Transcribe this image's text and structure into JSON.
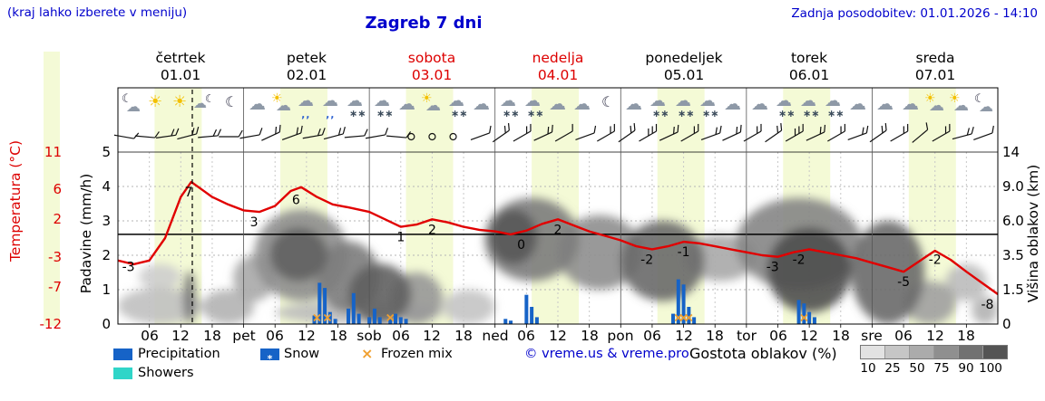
{
  "header": {
    "hint": "(kraj lahko izberete v meniju)",
    "title": "Zagreb 7 dni",
    "updated": "Zadnja posodobitev: 01.01.2026 - 14:10"
  },
  "colors": {
    "accent_blue": "#0000cc",
    "temp_red": "#dd0000",
    "temp_line": "#e10000",
    "precip_blue": "#1663c7",
    "showers_cyan": "#30d5c8",
    "frozen_orange": "#f0a030",
    "day_band": "#f4fad6"
  },
  "days": [
    {
      "name": "četrtek",
      "date": "01.01",
      "highlight": false,
      "icons": [
        "moon-cloud",
        "sun",
        "sun",
        "cloud-moon",
        "moon"
      ]
    },
    {
      "name": "petek",
      "date": "02.01",
      "highlight": false,
      "icons": [
        "cloud",
        "sun-cloud",
        "rain-cloud",
        "rain-cloud",
        "snow-cloud"
      ]
    },
    {
      "name": "sobota",
      "date": "03.01",
      "highlight": true,
      "icons": [
        "snow-cloud",
        "cloud",
        "sun-cloud",
        "snow-cloud",
        "cloud"
      ]
    },
    {
      "name": "nedelja",
      "date": "04.01",
      "highlight": true,
      "icons": [
        "snow-cloud",
        "snow-cloud",
        "cloud",
        "cloud",
        "moon"
      ]
    },
    {
      "name": "ponedeljek",
      "date": "05.01",
      "highlight": false,
      "icons": [
        "cloud",
        "snow-cloud",
        "snow-cloud",
        "snow-cloud",
        "cloud"
      ]
    },
    {
      "name": "torek",
      "date": "06.01",
      "highlight": false,
      "icons": [
        "cloud",
        "snow-cloud",
        "snow-cloud",
        "snow-cloud",
        "cloud"
      ]
    },
    {
      "name": "sreda",
      "date": "07.01",
      "highlight": false,
      "icons": [
        "cloud",
        "cloud",
        "sun-cloud",
        "sun-cloud",
        "moon-cloud"
      ]
    }
  ],
  "axes": {
    "temp": {
      "label": "Temperatura (°C)",
      "ticks": [
        11,
        6,
        2,
        -3,
        -7,
        -12
      ]
    },
    "precip": {
      "label": "Padavine (mm/h)",
      "ticks": [
        5,
        4,
        3,
        2,
        1,
        0
      ]
    },
    "cloud": {
      "label": "Višina oblakov (km)",
      "ticks": [
        "14",
        "9.0",
        "6.0",
        "3.5",
        "1.5",
        "0"
      ]
    }
  },
  "x_labels": [
    {
      "h": 6,
      "t": "06"
    },
    {
      "h": 12,
      "t": "12"
    },
    {
      "h": 18,
      "t": "18"
    },
    {
      "h": 24,
      "t": "pet"
    },
    {
      "h": 30,
      "t": "06"
    },
    {
      "h": 36,
      "t": "12"
    },
    {
      "h": 42,
      "t": "18"
    },
    {
      "h": 48,
      "t": "sob"
    },
    {
      "h": 54,
      "t": "06"
    },
    {
      "h": 60,
      "t": "12"
    },
    {
      "h": 66,
      "t": "18"
    },
    {
      "h": 72,
      "t": "ned"
    },
    {
      "h": 78,
      "t": "06"
    },
    {
      "h": 84,
      "t": "12"
    },
    {
      "h": 90,
      "t": "18"
    },
    {
      "h": 96,
      "t": "pon"
    },
    {
      "h": 102,
      "t": "06"
    },
    {
      "h": 108,
      "t": "12"
    },
    {
      "h": 114,
      "t": "18"
    },
    {
      "h": 120,
      "t": "tor"
    },
    {
      "h": 126,
      "t": "06"
    },
    {
      "h": 132,
      "t": "12"
    },
    {
      "h": 138,
      "t": "18"
    },
    {
      "h": 144,
      "t": "sre"
    },
    {
      "h": 150,
      "t": "06"
    },
    {
      "h": 156,
      "t": "12"
    },
    {
      "h": 162,
      "t": "18"
    }
  ],
  "legend": {
    "precipitation": "Precipitation",
    "snow": "Snow",
    "frozen": "Frozen mix",
    "showers": "Showers",
    "copyright": "© vreme.us & vreme.pro",
    "cloud_density_label": "Gostota oblakov (%)",
    "density_ticks": [
      10,
      25,
      50,
      75,
      90,
      100
    ]
  },
  "chart_data": {
    "type": "line",
    "title": "Zagreb 7 dni",
    "x_unit": "hours from 01.01 00:00",
    "x_range_hours": [
      0,
      168
    ],
    "now_hour": 14.2,
    "daylight_hours": [
      7,
      16
    ],
    "temp_axis_range": [
      -12,
      11
    ],
    "precip_axis_range": [
      0,
      5
    ],
    "cloud_height_ticks_km": [
      0,
      1.5,
      3.5,
      6,
      9,
      14
    ],
    "temperature_c": [
      [
        0,
        -3.5
      ],
      [
        3,
        -4
      ],
      [
        6,
        -3.5
      ],
      [
        9,
        -0.5
      ],
      [
        12,
        5
      ],
      [
        14,
        7
      ],
      [
        16,
        6
      ],
      [
        18,
        5
      ],
      [
        21,
        4
      ],
      [
        24,
        3.2
      ],
      [
        27,
        3
      ],
      [
        30,
        3.8
      ],
      [
        33,
        5.8
      ],
      [
        35,
        6.3
      ],
      [
        38,
        5
      ],
      [
        41,
        4
      ],
      [
        44,
        3.6
      ],
      [
        48,
        3
      ],
      [
        51,
        2
      ],
      [
        54,
        1
      ],
      [
        57,
        1.3
      ],
      [
        60,
        2
      ],
      [
        63,
        1.6
      ],
      [
        66,
        1
      ],
      [
        69,
        0.6
      ],
      [
        72,
        0.4
      ],
      [
        75,
        0
      ],
      [
        78,
        0.5
      ],
      [
        81,
        1.4
      ],
      [
        84,
        2
      ],
      [
        87,
        1.2
      ],
      [
        90,
        0.4
      ],
      [
        93,
        -0.2
      ],
      [
        96,
        -0.8
      ],
      [
        99,
        -1.6
      ],
      [
        102,
        -2
      ],
      [
        105,
        -1.6
      ],
      [
        108,
        -1
      ],
      [
        111,
        -1.2
      ],
      [
        114,
        -1.6
      ],
      [
        117,
        -2
      ],
      [
        120,
        -2.4
      ],
      [
        123,
        -2.8
      ],
      [
        126,
        -3
      ],
      [
        129,
        -2.4
      ],
      [
        132,
        -2
      ],
      [
        135,
        -2.4
      ],
      [
        138,
        -2.8
      ],
      [
        141,
        -3.2
      ],
      [
        144,
        -3.8
      ],
      [
        147,
        -4.4
      ],
      [
        150,
        -5
      ],
      [
        153,
        -3.6
      ],
      [
        156,
        -2.2
      ],
      [
        159,
        -3.4
      ],
      [
        162,
        -5
      ],
      [
        165,
        -6.5
      ],
      [
        168,
        -8
      ]
    ],
    "temp_labels": [
      {
        "h": 2,
        "v": -3
      },
      {
        "h": 13.5,
        "v": 7
      },
      {
        "h": 26,
        "v": 3
      },
      {
        "h": 34,
        "v": 6
      },
      {
        "h": 54,
        "v": 1
      },
      {
        "h": 60,
        "v": 2
      },
      {
        "h": 77,
        "v": 0
      },
      {
        "h": 84,
        "v": 2
      },
      {
        "h": 101,
        "v": -2
      },
      {
        "h": 108,
        "v": -1
      },
      {
        "h": 125,
        "v": -3
      },
      {
        "h": 130,
        "v": -2
      },
      {
        "h": 150,
        "v": -5
      },
      {
        "h": 156,
        "v": -2
      },
      {
        "h": 166,
        "v": -8
      }
    ],
    "precip_mm_h": [
      [
        37.5,
        0.25
      ],
      [
        38.5,
        1.2
      ],
      [
        39.5,
        1.05
      ],
      [
        40.5,
        0.35
      ],
      [
        41.5,
        0.15
      ],
      [
        44,
        0.45
      ],
      [
        45,
        0.9
      ],
      [
        46,
        0.3
      ],
      [
        48,
        0.2
      ],
      [
        49,
        0.45
      ],
      [
        50,
        0.2
      ],
      [
        52,
        0.15
      ],
      [
        53,
        0.3
      ],
      [
        54,
        0.2
      ],
      [
        55,
        0.15
      ],
      [
        74,
        0.15
      ],
      [
        75,
        0.1
      ],
      [
        78,
        0.85
      ],
      [
        79,
        0.5
      ],
      [
        80,
        0.2
      ],
      [
        106,
        0.3
      ],
      [
        107,
        1.3
      ],
      [
        108,
        1.15
      ],
      [
        109,
        0.5
      ],
      [
        110,
        0.2
      ],
      [
        130,
        0.7
      ],
      [
        131,
        0.6
      ],
      [
        132,
        0.35
      ],
      [
        133,
        0.2
      ]
    ],
    "frozen_mix_hours": [
      38,
      40,
      52,
      107,
      108,
      109,
      131
    ],
    "wind": [
      {
        "h": 1,
        "dir": 10,
        "spd": 1
      },
      {
        "h": 5,
        "dir": 5,
        "spd": 1
      },
      {
        "h": 9,
        "dir": -8,
        "spd": 2
      },
      {
        "h": 13,
        "dir": -15,
        "spd": 2
      },
      {
        "h": 17,
        "dir": -5,
        "spd": 2
      },
      {
        "h": 21,
        "dir": 0,
        "spd": 1
      },
      {
        "h": 25,
        "dir": -10,
        "spd": 1
      },
      {
        "h": 29,
        "dir": -25,
        "spd": 2
      },
      {
        "h": 33,
        "dir": -20,
        "spd": 2
      },
      {
        "h": 37,
        "dir": -10,
        "spd": 2
      },
      {
        "h": 41,
        "dir": -15,
        "spd": 2
      },
      {
        "h": 45,
        "dir": -5,
        "spd": 1
      },
      {
        "h": 49,
        "dir": -10,
        "spd": 1
      },
      {
        "h": 53,
        "dir": 5,
        "spd": 1
      },
      {
        "h": 56,
        "dir": 0,
        "spd": 0
      },
      {
        "h": 60,
        "dir": 0,
        "spd": 0
      },
      {
        "h": 64,
        "dir": 0,
        "spd": 0
      },
      {
        "h": 69,
        "dir": -20,
        "spd": 1
      },
      {
        "h": 73,
        "dir": -35,
        "spd": 2
      },
      {
        "h": 77,
        "dir": -30,
        "spd": 2
      },
      {
        "h": 81,
        "dir": -25,
        "spd": 2
      },
      {
        "h": 85,
        "dir": -30,
        "spd": 1
      },
      {
        "h": 89,
        "dir": -20,
        "spd": 1
      },
      {
        "h": 93,
        "dir": -30,
        "spd": 2
      },
      {
        "h": 97,
        "dir": -35,
        "spd": 2
      },
      {
        "h": 101,
        "dir": -30,
        "spd": 3
      },
      {
        "h": 105,
        "dir": -25,
        "spd": 2
      },
      {
        "h": 109,
        "dir": -30,
        "spd": 2
      },
      {
        "h": 113,
        "dir": -20,
        "spd": 2
      },
      {
        "h": 117,
        "dir": -25,
        "spd": 2
      },
      {
        "h": 121,
        "dir": -30,
        "spd": 2
      },
      {
        "h": 125,
        "dir": -35,
        "spd": 2
      },
      {
        "h": 129,
        "dir": -30,
        "spd": 3
      },
      {
        "h": 133,
        "dir": -25,
        "spd": 2
      },
      {
        "h": 137,
        "dir": -30,
        "spd": 2
      },
      {
        "h": 141,
        "dir": -20,
        "spd": 2
      },
      {
        "h": 145,
        "dir": -35,
        "spd": 2
      },
      {
        "h": 149,
        "dir": -30,
        "spd": 2
      },
      {
        "h": 153,
        "dir": -40,
        "spd": 1
      },
      {
        "h": 157,
        "dir": -30,
        "spd": 2
      },
      {
        "h": 161,
        "dir": -15,
        "spd": 2
      },
      {
        "h": 165,
        "dir": -20,
        "spd": 1
      }
    ],
    "cloud_regions": [
      {
        "h1": 0,
        "h2": 16,
        "km1": 0,
        "km2": 1.6,
        "s": 0.22
      },
      {
        "h1": 4,
        "h2": 12,
        "km1": 1.5,
        "km2": 3,
        "s": 0.15
      },
      {
        "h1": 12.5,
        "h2": 14.8,
        "km1": 0,
        "km2": 2.6,
        "s": 0.65
      },
      {
        "h1": 16,
        "h2": 26,
        "km1": 0,
        "km2": 1.5,
        "s": 0.3
      },
      {
        "h1": 22,
        "h2": 30,
        "km1": 1,
        "km2": 3.5,
        "s": 0.35
      },
      {
        "h1": 26,
        "h2": 44,
        "km1": 1,
        "km2": 7,
        "s": 0.5
      },
      {
        "h1": 29,
        "h2": 40,
        "km1": 2,
        "km2": 5.5,
        "s": 0.75
      },
      {
        "h1": 38,
        "h2": 50,
        "km1": 0.5,
        "km2": 4.5,
        "s": 0.6
      },
      {
        "h1": 44,
        "h2": 56,
        "km1": 0,
        "km2": 3,
        "s": 0.75
      },
      {
        "h1": 52,
        "h2": 62,
        "km1": 0,
        "km2": 2.5,
        "s": 0.45
      },
      {
        "h1": 30,
        "h2": 62,
        "km1": 0,
        "km2": 1,
        "s": 0.25
      },
      {
        "h1": 62,
        "h2": 72,
        "km1": 0,
        "km2": 1.5,
        "s": 0.2
      },
      {
        "h1": 70,
        "h2": 88,
        "km1": 2,
        "km2": 8,
        "s": 0.6
      },
      {
        "h1": 71,
        "h2": 80,
        "km1": 3,
        "km2": 7,
        "s": 0.8
      },
      {
        "h1": 84,
        "h2": 100,
        "km1": 1.5,
        "km2": 6.5,
        "s": 0.5
      },
      {
        "h1": 96,
        "h2": 112,
        "km1": 1,
        "km2": 6,
        "s": 0.7
      },
      {
        "h1": 108,
        "h2": 122,
        "km1": 2,
        "km2": 5,
        "s": 0.35
      },
      {
        "h1": 118,
        "h2": 142,
        "km1": 1.5,
        "km2": 8,
        "s": 0.55
      },
      {
        "h1": 124,
        "h2": 140,
        "km1": 0.5,
        "km2": 5.5,
        "s": 0.85
      },
      {
        "h1": 140,
        "h2": 154,
        "km1": 0,
        "km2": 6,
        "s": 0.7
      },
      {
        "h1": 150,
        "h2": 160,
        "km1": 0,
        "km2": 2,
        "s": 0.4
      },
      {
        "h1": 158,
        "h2": 166,
        "km1": 1,
        "km2": 3,
        "s": 0.25
      },
      {
        "h1": 163,
        "h2": 168,
        "km1": 0,
        "km2": 1.2,
        "s": 0.3
      }
    ]
  }
}
